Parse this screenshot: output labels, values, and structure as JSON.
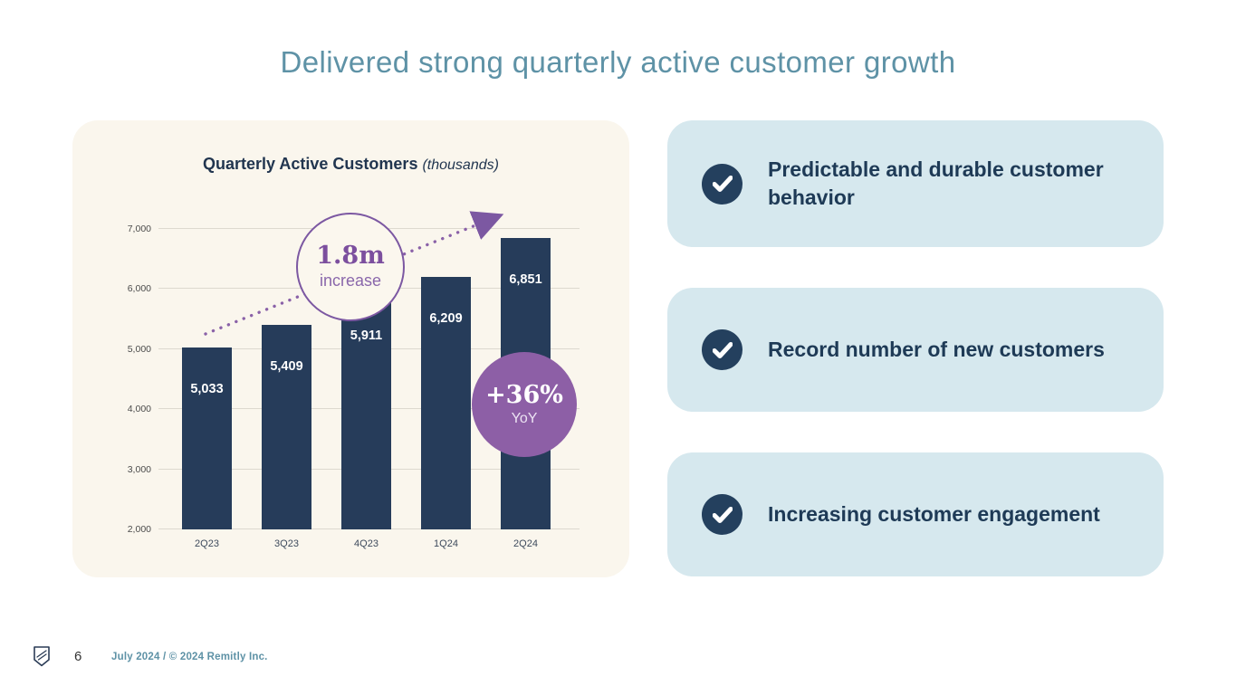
{
  "slide": {
    "title": "Delivered strong quarterly active customer growth"
  },
  "chart_card": {
    "title": "Quarterly Active Customers",
    "subtitle": "(thousands)"
  },
  "chart_data": {
    "type": "bar",
    "title": "Quarterly Active Customers (thousands)",
    "categories": [
      "2Q23",
      "3Q23",
      "4Q23",
      "1Q24",
      "2Q24"
    ],
    "values": [
      5033,
      5409,
      5911,
      6209,
      6851
    ],
    "value_labels": [
      "5,033",
      "5,409",
      "5,911",
      "6,209",
      "6,851"
    ],
    "ylim": [
      2000,
      7000
    ],
    "yticks": [
      2000,
      3000,
      4000,
      5000,
      6000,
      7000
    ],
    "ytick_labels": [
      "2,000",
      "3,000",
      "4,000",
      "5,000",
      "6,000",
      "7,000"
    ],
    "grid": true,
    "legend": false,
    "bar_color": "#263c5a",
    "annotations": [
      {
        "text_top": "1.8m",
        "text_bottom": "increase",
        "style": "outlined-circle"
      },
      {
        "text_top": "+36%",
        "text_bottom": "YoY",
        "style": "filled-circle"
      }
    ]
  },
  "highlights": [
    {
      "label": "Predictable and durable customer behavior"
    },
    {
      "label": "Record number of new customers"
    },
    {
      "label": "Increasing customer engagement"
    }
  ],
  "footer": {
    "page_number": "6",
    "text": "July 2024 / © 2024 Remitly Inc."
  },
  "colors": {
    "title_teal": "#5e92a6",
    "navy_text": "#1e3a56",
    "bar_navy": "#263c5a",
    "cream_card": "#faf6ed",
    "light_blue_card": "#d6e8ee",
    "purple": "#8d5fa6"
  }
}
